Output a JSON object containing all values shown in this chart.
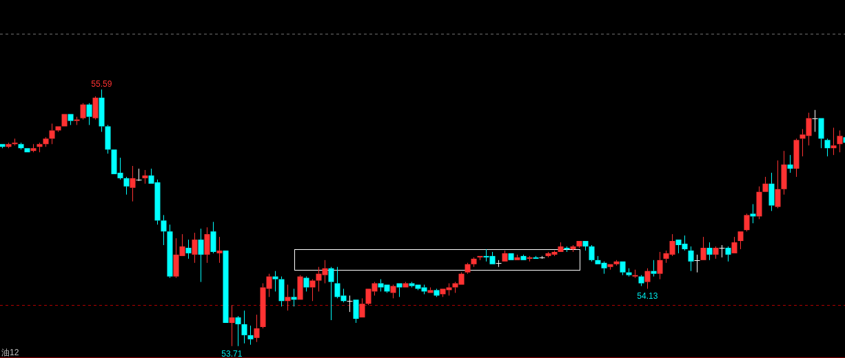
{
  "chart_data": {
    "type": "candlestick",
    "categories": [
      null,
      null,
      null,
      null,
      null,
      null,
      null,
      null,
      null,
      null,
      null,
      null,
      null,
      null,
      null,
      null,
      null,
      null,
      null,
      null,
      null,
      null,
      null,
      null,
      null,
      null,
      null,
      null,
      null,
      null,
      null,
      null,
      null,
      null,
      null,
      null,
      null,
      null,
      null,
      null,
      null,
      null,
      null,
      null,
      null,
      null,
      null,
      null,
      null,
      null,
      null,
      null,
      null,
      null,
      null,
      null,
      null,
      null,
      null,
      null,
      null,
      null,
      null,
      null,
      null,
      null,
      null,
      null,
      null,
      null,
      null,
      null,
      null,
      null,
      null,
      null,
      null,
      null,
      null,
      null,
      null,
      null,
      null,
      null,
      null,
      null,
      null,
      null,
      null,
      null,
      null,
      null,
      null,
      null,
      null,
      null,
      null,
      null,
      null,
      null,
      null,
      null,
      null,
      null,
      null,
      null,
      null,
      null,
      null,
      null,
      null,
      null,
      null,
      null,
      null,
      null,
      null,
      null,
      null,
      null,
      null,
      null,
      null,
      null,
      null,
      null,
      null,
      null,
      null,
      null,
      null,
      null,
      null,
      null,
      null,
      null,
      null
    ],
    "ohlc": [
      [
        55.19,
        55.19,
        55.16,
        55.17
      ],
      [
        55.17,
        55.2,
        55.16,
        55.19
      ],
      [
        55.19,
        55.23,
        55.18,
        55.2
      ],
      [
        55.19,
        55.2,
        55.15,
        55.16
      ],
      [
        55.16,
        55.16,
        55.13,
        55.13
      ],
      [
        55.14,
        55.19,
        55.13,
        55.16
      ],
      [
        55.17,
        55.2,
        55.13,
        55.19
      ],
      [
        55.19,
        55.24,
        55.17,
        55.23
      ],
      [
        55.23,
        55.34,
        55.19,
        55.29
      ],
      [
        55.29,
        55.32,
        55.28,
        55.32
      ],
      [
        55.32,
        55.41,
        55.32,
        55.41
      ],
      [
        55.41,
        55.41,
        55.33,
        55.36
      ],
      [
        55.36,
        55.39,
        55.33,
        55.37
      ],
      [
        55.38,
        55.49,
        55.37,
        55.48
      ],
      [
        55.48,
        55.49,
        55.33,
        55.39
      ],
      [
        55.38,
        55.54,
        55.37,
        55.53
      ],
      [
        55.53,
        55.59,
        55.28,
        55.32
      ],
      [
        55.32,
        55.33,
        55.12,
        55.15
      ],
      [
        55.15,
        55.15,
        54.97,
        54.97
      ],
      [
        54.98,
        55.09,
        54.93,
        54.94
      ],
      [
        54.94,
        54.95,
        54.82,
        54.88
      ],
      [
        54.87,
        55.03,
        54.77,
        54.94
      ],
      [
        54.93,
        55.01,
        54.92,
        54.93
      ],
      [
        54.94,
        55.0,
        54.9,
        54.96
      ],
      [
        54.96,
        55.01,
        54.9,
        54.9
      ],
      [
        54.91,
        54.93,
        54.6,
        54.63
      ],
      [
        54.63,
        54.67,
        54.45,
        54.55
      ],
      [
        54.55,
        54.6,
        54.21,
        54.22
      ],
      [
        54.22,
        54.5,
        54.21,
        54.38
      ],
      [
        54.37,
        54.53,
        54.37,
        54.44
      ],
      [
        54.43,
        54.49,
        54.35,
        54.39
      ],
      [
        54.38,
        54.54,
        54.32,
        54.49
      ],
      [
        54.49,
        54.57,
        54.18,
        54.38
      ],
      [
        54.38,
        54.58,
        54.32,
        54.53
      ],
      [
        54.55,
        54.62,
        54.39,
        54.4
      ],
      [
        54.39,
        54.51,
        54.32,
        54.41
      ],
      [
        54.41,
        54.41,
        53.88,
        53.88
      ],
      [
        53.88,
        54.01,
        53.71,
        53.92
      ],
      [
        53.92,
        53.93,
        53.71,
        53.87
      ],
      [
        53.87,
        53.97,
        53.73,
        53.79
      ],
      [
        53.79,
        53.86,
        53.72,
        53.76
      ],
      [
        53.77,
        53.94,
        53.74,
        53.84
      ],
      [
        53.85,
        54.17,
        53.84,
        54.14
      ],
      [
        54.13,
        54.24,
        54.07,
        54.22
      ],
      [
        54.22,
        54.26,
        54.11,
        54.2
      ],
      [
        54.2,
        54.22,
        54.0,
        54.04
      ],
      [
        54.04,
        54.16,
        53.97,
        54.07
      ],
      [
        54.07,
        54.13,
        54.0,
        54.05
      ],
      [
        54.05,
        54.23,
        54.05,
        54.22
      ],
      [
        54.21,
        54.22,
        54.11,
        54.14
      ],
      [
        54.14,
        54.2,
        54.04,
        54.19
      ],
      [
        54.19,
        54.29,
        54.11,
        54.24
      ],
      [
        54.23,
        54.34,
        54.17,
        54.28
      ],
      [
        54.28,
        54.29,
        53.9,
        54.18
      ],
      [
        54.17,
        54.29,
        54.06,
        54.07
      ],
      [
        54.08,
        54.13,
        54.03,
        54.04
      ],
      [
        54.04,
        54.08,
        53.96,
        54.04
      ],
      [
        54.05,
        54.05,
        53.88,
        53.91
      ],
      [
        53.92,
        54.06,
        53.92,
        54.02
      ],
      [
        54.02,
        54.13,
        54.01,
        54.13
      ],
      [
        54.11,
        54.18,
        54.08,
        54.17
      ],
      [
        54.17,
        54.2,
        54.11,
        54.14
      ],
      [
        54.16,
        54.16,
        54.1,
        54.11
      ],
      [
        54.1,
        54.16,
        54.06,
        54.15
      ],
      [
        54.17,
        54.17,
        54.07,
        54.14
      ],
      [
        54.14,
        54.18,
        54.14,
        54.17
      ],
      [
        54.17,
        54.18,
        54.14,
        54.15
      ],
      [
        54.16,
        54.16,
        54.12,
        54.13
      ],
      [
        54.14,
        54.16,
        54.09,
        54.11
      ],
      [
        54.1,
        54.14,
        54.1,
        54.12
      ],
      [
        54.12,
        54.13,
        54.07,
        54.08
      ],
      [
        54.09,
        54.13,
        54.07,
        54.13
      ],
      [
        54.12,
        54.17,
        54.08,
        54.14
      ],
      [
        54.14,
        54.18,
        54.1,
        54.17
      ],
      [
        54.16,
        54.25,
        54.16,
        54.24
      ],
      [
        54.25,
        54.32,
        54.24,
        54.31
      ],
      [
        54.31,
        54.36,
        54.29,
        54.35
      ],
      [
        54.36,
        54.37,
        54.34,
        54.37
      ],
      [
        54.37,
        54.42,
        54.33,
        54.36
      ],
      [
        54.37,
        54.4,
        54.31,
        54.31
      ],
      [
        54.32,
        54.34,
        54.29,
        54.32
      ],
      [
        54.33,
        54.41,
        54.33,
        54.39
      ],
      [
        54.39,
        54.39,
        54.34,
        54.34
      ],
      [
        54.34,
        54.38,
        54.34,
        54.36
      ],
      [
        54.37,
        54.38,
        54.34,
        54.34
      ],
      [
        54.35,
        54.37,
        54.33,
        54.36
      ],
      [
        54.36,
        54.37,
        54.35,
        54.35
      ],
      [
        54.36,
        54.37,
        54.35,
        54.36
      ],
      [
        54.37,
        54.4,
        54.36,
        54.39
      ],
      [
        54.38,
        54.41,
        54.37,
        54.4
      ],
      [
        54.4,
        54.47,
        54.4,
        54.44
      ],
      [
        54.43,
        54.44,
        54.4,
        54.42
      ],
      [
        54.42,
        54.45,
        54.4,
        54.44
      ],
      [
        54.44,
        54.48,
        54.43,
        54.48
      ],
      [
        54.48,
        54.48,
        54.41,
        54.44
      ],
      [
        54.44,
        54.45,
        54.33,
        54.34
      ],
      [
        54.34,
        54.37,
        54.31,
        54.31
      ],
      [
        54.32,
        54.33,
        54.24,
        54.28
      ],
      [
        54.29,
        54.31,
        54.27,
        54.31
      ],
      [
        54.31,
        54.34,
        54.3,
        54.33
      ],
      [
        54.33,
        54.33,
        54.23,
        54.25
      ],
      [
        54.25,
        54.28,
        54.22,
        54.23
      ],
      [
        54.22,
        54.27,
        54.21,
        54.23
      ],
      [
        54.22,
        54.23,
        54.15,
        54.17
      ],
      [
        54.18,
        54.28,
        54.13,
        54.26
      ],
      [
        54.26,
        54.34,
        54.22,
        54.24
      ],
      [
        54.24,
        54.4,
        54.2,
        54.34
      ],
      [
        54.35,
        54.41,
        54.32,
        54.39
      ],
      [
        54.38,
        54.53,
        54.37,
        54.48
      ],
      [
        54.49,
        54.49,
        54.39,
        54.45
      ],
      [
        54.46,
        54.52,
        54.41,
        54.42
      ],
      [
        54.41,
        54.44,
        54.26,
        54.33
      ],
      [
        54.34,
        54.38,
        54.25,
        54.34
      ],
      [
        54.34,
        54.51,
        54.34,
        54.43
      ],
      [
        54.43,
        54.47,
        54.34,
        54.38
      ],
      [
        54.38,
        54.44,
        54.35,
        54.43
      ],
      [
        54.43,
        54.45,
        54.36,
        54.43
      ],
      [
        54.43,
        54.44,
        54.33,
        54.38
      ],
      [
        54.39,
        54.51,
        54.39,
        54.47
      ],
      [
        54.48,
        54.55,
        54.42,
        54.55
      ],
      [
        54.56,
        54.68,
        54.55,
        54.67
      ],
      [
        54.68,
        54.75,
        54.61,
        54.66
      ],
      [
        54.66,
        54.88,
        54.64,
        54.84
      ],
      [
        54.84,
        54.95,
        54.84,
        54.9
      ],
      [
        54.9,
        54.98,
        54.7,
        54.74
      ],
      [
        54.73,
        55.07,
        54.72,
        54.86
      ],
      [
        54.86,
        55.14,
        54.82,
        55.04
      ],
      [
        55.04,
        55.11,
        54.98,
        55.01
      ],
      [
        55.01,
        55.23,
        54.95,
        55.22
      ],
      [
        55.23,
        55.3,
        55.1,
        55.26
      ],
      [
        55.25,
        55.42,
        55.18,
        55.38
      ],
      [
        55.38,
        55.44,
        55.28,
        55.38
      ],
      [
        55.38,
        55.38,
        55.16,
        55.23
      ],
      [
        55.22,
        55.23,
        55.1,
        55.16
      ],
      [
        55.16,
        55.31,
        55.11,
        55.18
      ],
      [
        55.19,
        55.29,
        55.13,
        55.25
      ],
      [
        55.24,
        55.24,
        55.2,
        55.2
      ]
    ],
    "colors": [
      "#00ffff",
      "#ff3232",
      "#ff3232",
      "#00ffff",
      "#00ffff",
      "#ff3232",
      "#ff3232",
      "#ff3232",
      "#ff3232",
      "#ff3232",
      "#ff3232",
      "#00ffff",
      "#ff3232",
      "#ff3232",
      "#00ffff",
      "#ff3232",
      "#00ffff",
      "#00ffff",
      "#00ffff",
      "#00ffff",
      "#00ffff",
      "#ff3232",
      "#ffffff",
      "#ff3232",
      "#00ffff",
      "#00ffff",
      "#00ffff",
      "#00ffff",
      "#ff3232",
      "#ff3232",
      "#00ffff",
      "#ff3232",
      "#00ffff",
      "#ff3232",
      "#00ffff",
      "#ff3232",
      "#00ffff",
      "#ff3232",
      "#00ffff",
      "#00ffff",
      "#00ffff",
      "#ff3232",
      "#ff3232",
      "#ff3232",
      "#00ffff",
      "#00ffff",
      "#ff3232",
      "#00ffff",
      "#ff3232",
      "#00ffff",
      "#ff3232",
      "#ff3232",
      "#ff3232",
      "#00ffff",
      "#00ffff",
      "#00ffff",
      "#ffffff",
      "#00ffff",
      "#ff3232",
      "#ff3232",
      "#ff3232",
      "#00ffff",
      "#00ffff",
      "#ff3232",
      "#00ffff",
      "#ff3232",
      "#00ffff",
      "#00ffff",
      "#00ffff",
      "#ff3232",
      "#00ffff",
      "#ff3232",
      "#ff3232",
      "#ff3232",
      "#ff3232",
      "#ff3232",
      "#ff3232",
      "#ff3232",
      "#00ffff",
      "#00ffff",
      "#ffffff",
      "#ff3232",
      "#00ffff",
      "#ff3232",
      "#00ffff",
      "#ff3232",
      "#00ffff",
      "#ffffff",
      "#ff3232",
      "#ff3232",
      "#ff3232",
      "#00ffff",
      "#ff3232",
      "#ff3232",
      "#00ffff",
      "#00ffff",
      "#00ffff",
      "#00ffff",
      "#ff3232",
      "#ff3232",
      "#00ffff",
      "#00ffff",
      "#ff3232",
      "#00ffff",
      "#ff3232",
      "#00ffff",
      "#ff3232",
      "#ff3232",
      "#ff3232",
      "#00ffff",
      "#00ffff",
      "#00ffff",
      "#ffffff",
      "#ff3232",
      "#00ffff",
      "#ff3232",
      "#ffffff",
      "#00ffff",
      "#ff3232",
      "#ff3232",
      "#ff3232",
      "#00ffff",
      "#ff3232",
      "#ff3232",
      "#00ffff",
      "#ff3232",
      "#ff3232",
      "#00ffff",
      "#ff3232",
      "#ff3232",
      "#ff3232",
      "#ffffff",
      "#00ffff",
      "#00ffff",
      "#ff3232",
      "#ff3232",
      "#00ffff"
    ],
    "ref_lines": [
      {
        "axis": "y",
        "value": 56.0,
        "color": "#707070",
        "line_style": "dashed"
      },
      {
        "axis": "y",
        "value": 54.01,
        "color": "#b00000",
        "line_style": "dashed"
      }
    ],
    "annotations": [
      {
        "text": "55.59",
        "y": 55.59
      },
      {
        "text": "53.71",
        "y": 53.71
      },
      {
        "text": "54.13",
        "y": 54.13
      },
      "油12"
    ]
  }
}
